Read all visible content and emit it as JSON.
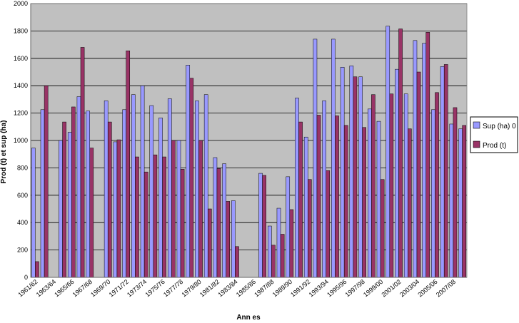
{
  "chart_data": {
    "type": "bar",
    "title": "",
    "xlabel": "Ann es",
    "ylabel": "Prod (t) et sup (ha)",
    "ylim": [
      0,
      2000
    ],
    "yticks": [
      0,
      200,
      400,
      600,
      800,
      1000,
      1200,
      1400,
      1600,
      1800,
      2000
    ],
    "grid": true,
    "legend_position": "right",
    "plot_background": "#c0c0c0",
    "categories": [
      "1961/62",
      "1962/63",
      "1963/64",
      "1964/65",
      "1965/66",
      "1966/67",
      "1967/68",
      "1968/69",
      "1969/70",
      "1970/71",
      "1971/72",
      "1972/73",
      "1973/74",
      "1974/75",
      "1975/76",
      "1976/77",
      "1977/78",
      "1978/79",
      "1979/80",
      "1980/81",
      "1981/82",
      "1982/83",
      "1983/84",
      "1984/85",
      "1985/86",
      "1986/87",
      "1987/88",
      "1988/89",
      "1989/90",
      "1990/91",
      "1991/92",
      "1992/93",
      "1993/94",
      "1994/95",
      "1995/96",
      "1996/97",
      "1997/98",
      "1998/99",
      "1999/00",
      "2000/01",
      "2001/02",
      "2002/03",
      "2003/04",
      "2004/05",
      "2005/06",
      "2006/07",
      "2007/08",
      "2008/09"
    ],
    "xtick_labels": [
      "1961/62",
      "1963/64",
      "1965/66",
      "1967/68",
      "1969/70",
      "1971/72",
      "1973/74",
      "1975/76",
      "1977/78",
      "1979/80",
      "1981/82",
      "1983/84",
      "1985/86",
      "1987/88",
      "1989/90",
      "1991/92",
      "1993/94",
      "1995/96",
      "1997/98",
      "1999/00",
      "2001/02",
      "2003/04",
      "2005/06",
      "2007/08"
    ],
    "series": [
      {
        "name": "Sup (ha) 0",
        "color": "#9999ff",
        "values": [
          945,
          1225,
          0,
          1000,
          1060,
          1320,
          1215,
          0,
          1290,
          990,
          1225,
          1335,
          1400,
          1255,
          1165,
          1305,
          1000,
          1550,
          1290,
          1335,
          875,
          830,
          560,
          0,
          0,
          760,
          375,
          505,
          735,
          1310,
          1025,
          1740,
          1290,
          1740,
          1535,
          1545,
          1465,
          1230,
          1140,
          1835,
          1520,
          1340,
          1730,
          1710,
          1225,
          1540,
          1120,
          1085
        ]
      },
      {
        "name": "Prod (t)",
        "color": "#993366",
        "values": [
          115,
          1400,
          0,
          1135,
          1245,
          1680,
          945,
          0,
          1135,
          1005,
          1655,
          880,
          770,
          895,
          880,
          1000,
          790,
          1455,
          1000,
          500,
          795,
          555,
          225,
          0,
          0,
          745,
          235,
          315,
          495,
          1135,
          715,
          1185,
          780,
          1180,
          1110,
          1465,
          1095,
          1335,
          715,
          1340,
          1815,
          1085,
          1500,
          1790,
          1350,
          1555,
          1240,
          1110
        ]
      }
    ]
  }
}
